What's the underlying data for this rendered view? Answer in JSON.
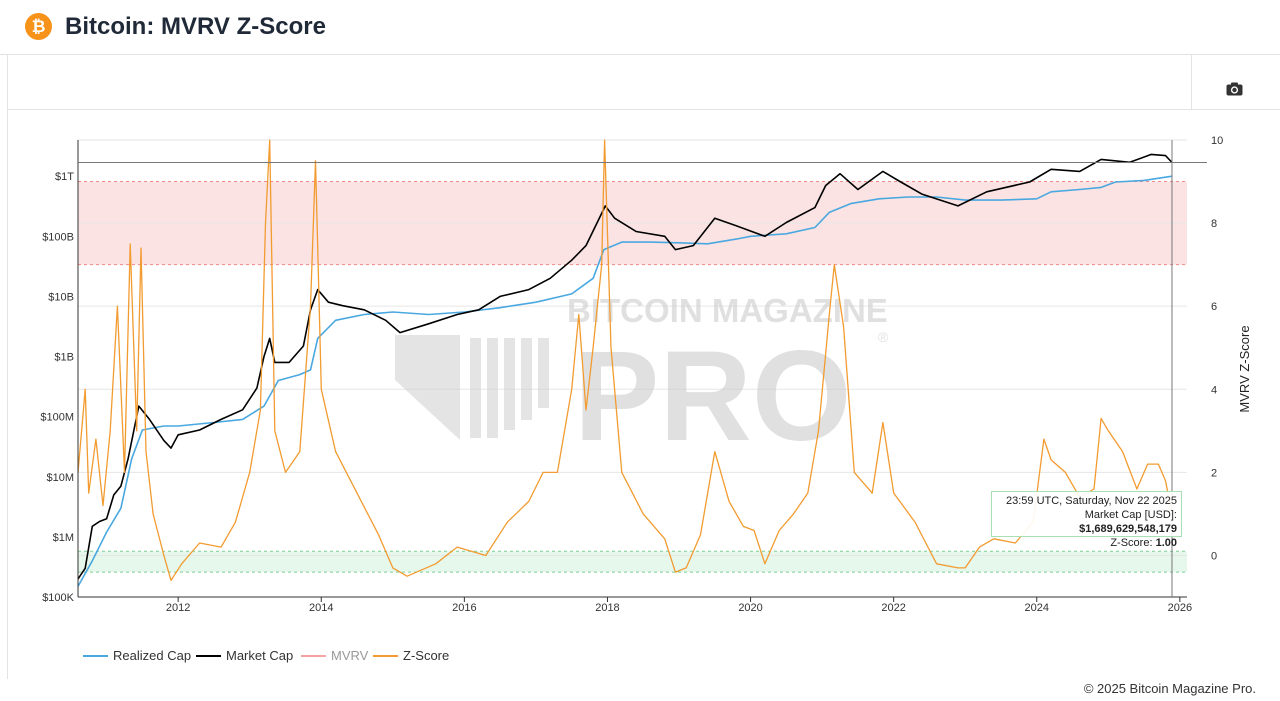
{
  "header": {
    "title": "Bitcoin: MVRV Z-Score",
    "logo_glyph": "₿",
    "logo_color": "#f7931a"
  },
  "toolbar": {
    "camera_icon": "camera-icon"
  },
  "watermark": {
    "line1": "BITCOIN MAGAZINE",
    "line2": "PRO",
    "mark": "®"
  },
  "tooltip": {
    "date": "23:59 UTC, Saturday, Nov 22 2025",
    "market_cap_label": "Market Cap [USD]:",
    "market_cap_value": "$1,689,629,548,179",
    "z_label": "Z-Score:",
    "z_value": "1.00"
  },
  "legend": [
    {
      "label": "Realized Cap",
      "color": "#4aa8e0"
    },
    {
      "label": "Market Cap",
      "color": "#000000"
    },
    {
      "label": "MVRV",
      "color": "#f2a3a3"
    },
    {
      "label": "Z-Score",
      "color": "#f29b30"
    }
  ],
  "copyright": "© 2025 Bitcoin Magazine Pro.",
  "chart_data": {
    "type": "line",
    "title": "Bitcoin: MVRV Z-Score",
    "xlim": [
      2010.6,
      2026.1
    ],
    "x_ticks": [
      "2012",
      "2014",
      "2016",
      "2018",
      "2020",
      "2022",
      "2024",
      "2026"
    ],
    "left_axis": {
      "scale": "log",
      "ylim": [
        100000,
        4000000000000
      ],
      "tick_labels": [
        "$100K",
        "$1M",
        "$10M",
        "$100M",
        "$1B",
        "$10B",
        "$100B",
        "$1T"
      ],
      "tick_values": [
        100000,
        1000000,
        10000000,
        100000000,
        1000000000,
        10000000000,
        100000000000,
        1000000000000
      ]
    },
    "right_axis": {
      "label": "MVRV Z-Score",
      "ylim": [
        -1,
        10
      ],
      "tick_values": [
        0,
        2,
        4,
        6,
        8,
        10
      ],
      "tick_labels": [
        "0",
        "2",
        "4",
        "6",
        "8",
        "10"
      ]
    },
    "bands": [
      {
        "axis": "right",
        "from": 7,
        "to": 9,
        "color": "#fbe3e3",
        "border": "#f08a8a"
      },
      {
        "axis": "right",
        "from": -0.4,
        "to": 0.1,
        "color": "#e6f7ec",
        "border": "#7ccf95"
      }
    ],
    "crosshair": {
      "x": 2025.89,
      "market_cap": 1689629548179,
      "z_score": 1.0
    },
    "series": [
      {
        "name": "Realized Cap",
        "axis": "left",
        "color": "#4aa8e0",
        "points": [
          [
            2010.6,
            150000
          ],
          [
            2010.8,
            400000
          ],
          [
            2011.0,
            1200000
          ],
          [
            2011.2,
            3000000
          ],
          [
            2011.35,
            20000000
          ],
          [
            2011.5,
            60000000
          ],
          [
            2011.8,
            70000000
          ],
          [
            2012.0,
            70000000
          ],
          [
            2012.5,
            80000000
          ],
          [
            2012.9,
            90000000
          ],
          [
            2013.2,
            150000000
          ],
          [
            2013.4,
            400000000
          ],
          [
            2013.7,
            500000000
          ],
          [
            2013.85,
            600000000
          ],
          [
            2013.95,
            2000000000
          ],
          [
            2014.2,
            4000000000
          ],
          [
            2014.6,
            5000000000
          ],
          [
            2015.0,
            5500000000
          ],
          [
            2015.5,
            5000000000
          ],
          [
            2016.0,
            5500000000
          ],
          [
            2016.5,
            6500000000
          ],
          [
            2017.0,
            8000000000
          ],
          [
            2017.5,
            11000000000
          ],
          [
            2017.8,
            20000000000
          ],
          [
            2017.95,
            60000000000
          ],
          [
            2018.2,
            80000000000
          ],
          [
            2018.6,
            80000000000
          ],
          [
            2019.0,
            78000000000
          ],
          [
            2019.4,
            75000000000
          ],
          [
            2019.8,
            90000000000
          ],
          [
            2020.0,
            100000000000
          ],
          [
            2020.5,
            110000000000
          ],
          [
            2020.9,
            140000000000
          ],
          [
            2021.1,
            250000000000
          ],
          [
            2021.4,
            350000000000
          ],
          [
            2021.8,
            420000000000
          ],
          [
            2022.2,
            450000000000
          ],
          [
            2022.6,
            450000000000
          ],
          [
            2023.0,
            400000000000
          ],
          [
            2023.5,
            400000000000
          ],
          [
            2024.0,
            420000000000
          ],
          [
            2024.2,
            550000000000
          ],
          [
            2024.6,
            600000000000
          ],
          [
            2024.9,
            650000000000
          ],
          [
            2025.1,
            800000000000
          ],
          [
            2025.5,
            850000000000
          ],
          [
            2025.89,
            1000000000000
          ]
        ]
      },
      {
        "name": "Market Cap",
        "axis": "left",
        "color": "#000000",
        "points": [
          [
            2010.6,
            200000
          ],
          [
            2010.7,
            300000
          ],
          [
            2010.8,
            1500000
          ],
          [
            2010.9,
            1800000
          ],
          [
            2011.0,
            2000000
          ],
          [
            2011.1,
            5000000
          ],
          [
            2011.2,
            7000000
          ],
          [
            2011.3,
            20000000
          ],
          [
            2011.45,
            150000000
          ],
          [
            2011.6,
            90000000
          ],
          [
            2011.8,
            40000000
          ],
          [
            2011.9,
            30000000
          ],
          [
            2012.0,
            50000000
          ],
          [
            2012.3,
            60000000
          ],
          [
            2012.6,
            90000000
          ],
          [
            2012.9,
            130000000
          ],
          [
            2013.1,
            300000000
          ],
          [
            2013.2,
            1000000000
          ],
          [
            2013.28,
            2000000000
          ],
          [
            2013.35,
            800000000
          ],
          [
            2013.55,
            800000000
          ],
          [
            2013.75,
            1500000000
          ],
          [
            2013.85,
            6000000000
          ],
          [
            2013.95,
            13000000000
          ],
          [
            2014.1,
            8000000000
          ],
          [
            2014.3,
            7000000000
          ],
          [
            2014.6,
            6000000000
          ],
          [
            2014.9,
            4000000000
          ],
          [
            2015.1,
            2500000000
          ],
          [
            2015.5,
            3500000000
          ],
          [
            2015.9,
            5000000000
          ],
          [
            2016.2,
            6000000000
          ],
          [
            2016.5,
            10000000000
          ],
          [
            2016.9,
            13000000000
          ],
          [
            2017.2,
            20000000000
          ],
          [
            2017.5,
            40000000000
          ],
          [
            2017.7,
            70000000000
          ],
          [
            2017.97,
            320000000000
          ],
          [
            2018.1,
            200000000000
          ],
          [
            2018.4,
            120000000000
          ],
          [
            2018.8,
            100000000000
          ],
          [
            2018.95,
            60000000000
          ],
          [
            2019.2,
            70000000000
          ],
          [
            2019.5,
            200000000000
          ],
          [
            2019.8,
            150000000000
          ],
          [
            2020.2,
            100000000000
          ],
          [
            2020.5,
            170000000000
          ],
          [
            2020.9,
            300000000000
          ],
          [
            2021.05,
            700000000000
          ],
          [
            2021.25,
            1100000000000
          ],
          [
            2021.5,
            600000000000
          ],
          [
            2021.85,
            1200000000000
          ],
          [
            2022.1,
            800000000000
          ],
          [
            2022.4,
            500000000000
          ],
          [
            2022.9,
            320000000000
          ],
          [
            2023.3,
            550000000000
          ],
          [
            2023.9,
            800000000000
          ],
          [
            2024.2,
            1300000000000
          ],
          [
            2024.6,
            1200000000000
          ],
          [
            2024.9,
            1900000000000
          ],
          [
            2025.3,
            1700000000000
          ],
          [
            2025.6,
            2300000000000
          ],
          [
            2025.8,
            2200000000000
          ],
          [
            2025.89,
            1689629548179
          ]
        ]
      },
      {
        "name": "Z-Score",
        "axis": "right",
        "color": "#f29b30",
        "points": [
          [
            2010.6,
            2.0
          ],
          [
            2010.7,
            4.0
          ],
          [
            2010.75,
            1.5
          ],
          [
            2010.85,
            2.8
          ],
          [
            2010.95,
            1.2
          ],
          [
            2011.05,
            3.0
          ],
          [
            2011.15,
            6.0
          ],
          [
            2011.25,
            2.0
          ],
          [
            2011.33,
            7.5
          ],
          [
            2011.42,
            3.0
          ],
          [
            2011.48,
            7.4
          ],
          [
            2011.55,
            2.5
          ],
          [
            2011.65,
            1.0
          ],
          [
            2011.8,
            0.0
          ],
          [
            2011.9,
            -0.6
          ],
          [
            2012.05,
            -0.2
          ],
          [
            2012.3,
            0.3
          ],
          [
            2012.6,
            0.2
          ],
          [
            2012.8,
            0.8
          ],
          [
            2013.0,
            2.0
          ],
          [
            2013.15,
            3.5
          ],
          [
            2013.22,
            8.0
          ],
          [
            2013.28,
            10.0
          ],
          [
            2013.35,
            3.0
          ],
          [
            2013.5,
            2.0
          ],
          [
            2013.7,
            2.5
          ],
          [
            2013.85,
            6.0
          ],
          [
            2013.92,
            9.5
          ],
          [
            2014.0,
            4.0
          ],
          [
            2014.2,
            2.5
          ],
          [
            2014.5,
            1.5
          ],
          [
            2014.8,
            0.5
          ],
          [
            2015.0,
            -0.3
          ],
          [
            2015.2,
            -0.5
          ],
          [
            2015.6,
            -0.2
          ],
          [
            2015.9,
            0.2
          ],
          [
            2016.3,
            0.0
          ],
          [
            2016.6,
            0.8
          ],
          [
            2016.9,
            1.3
          ],
          [
            2017.1,
            2.0
          ],
          [
            2017.3,
            2.0
          ],
          [
            2017.5,
            4.0
          ],
          [
            2017.6,
            5.8
          ],
          [
            2017.7,
            3.5
          ],
          [
            2017.8,
            5.0
          ],
          [
            2017.92,
            7.0
          ],
          [
            2017.96,
            10.0
          ],
          [
            2018.05,
            5.0
          ],
          [
            2018.2,
            2.0
          ],
          [
            2018.5,
            1.0
          ],
          [
            2018.8,
            0.4
          ],
          [
            2018.95,
            -0.4
          ],
          [
            2019.1,
            -0.3
          ],
          [
            2019.3,
            0.5
          ],
          [
            2019.5,
            2.5
          ],
          [
            2019.7,
            1.3
          ],
          [
            2019.9,
            0.7
          ],
          [
            2020.05,
            0.6
          ],
          [
            2020.2,
            -0.2
          ],
          [
            2020.4,
            0.6
          ],
          [
            2020.6,
            1.0
          ],
          [
            2020.8,
            1.5
          ],
          [
            2020.95,
            3.0
          ],
          [
            2021.1,
            5.8
          ],
          [
            2021.17,
            7.0
          ],
          [
            2021.3,
            5.5
          ],
          [
            2021.45,
            2.0
          ],
          [
            2021.7,
            1.5
          ],
          [
            2021.85,
            3.2
          ],
          [
            2022.0,
            1.5
          ],
          [
            2022.3,
            0.8
          ],
          [
            2022.45,
            0.3
          ],
          [
            2022.6,
            -0.2
          ],
          [
            2022.9,
            -0.3
          ],
          [
            2023.0,
            -0.3
          ],
          [
            2023.2,
            0.2
          ],
          [
            2023.4,
            0.4
          ],
          [
            2023.7,
            0.3
          ],
          [
            2023.95,
            0.8
          ],
          [
            2024.1,
            2.8
          ],
          [
            2024.2,
            2.3
          ],
          [
            2024.4,
            2.0
          ],
          [
            2024.6,
            1.4
          ],
          [
            2024.8,
            1.6
          ],
          [
            2024.9,
            3.3
          ],
          [
            2025.0,
            3.0
          ],
          [
            2025.2,
            2.5
          ],
          [
            2025.4,
            1.6
          ],
          [
            2025.55,
            2.2
          ],
          [
            2025.7,
            2.2
          ],
          [
            2025.8,
            1.8
          ],
          [
            2025.89,
            1.0
          ]
        ]
      }
    ]
  }
}
